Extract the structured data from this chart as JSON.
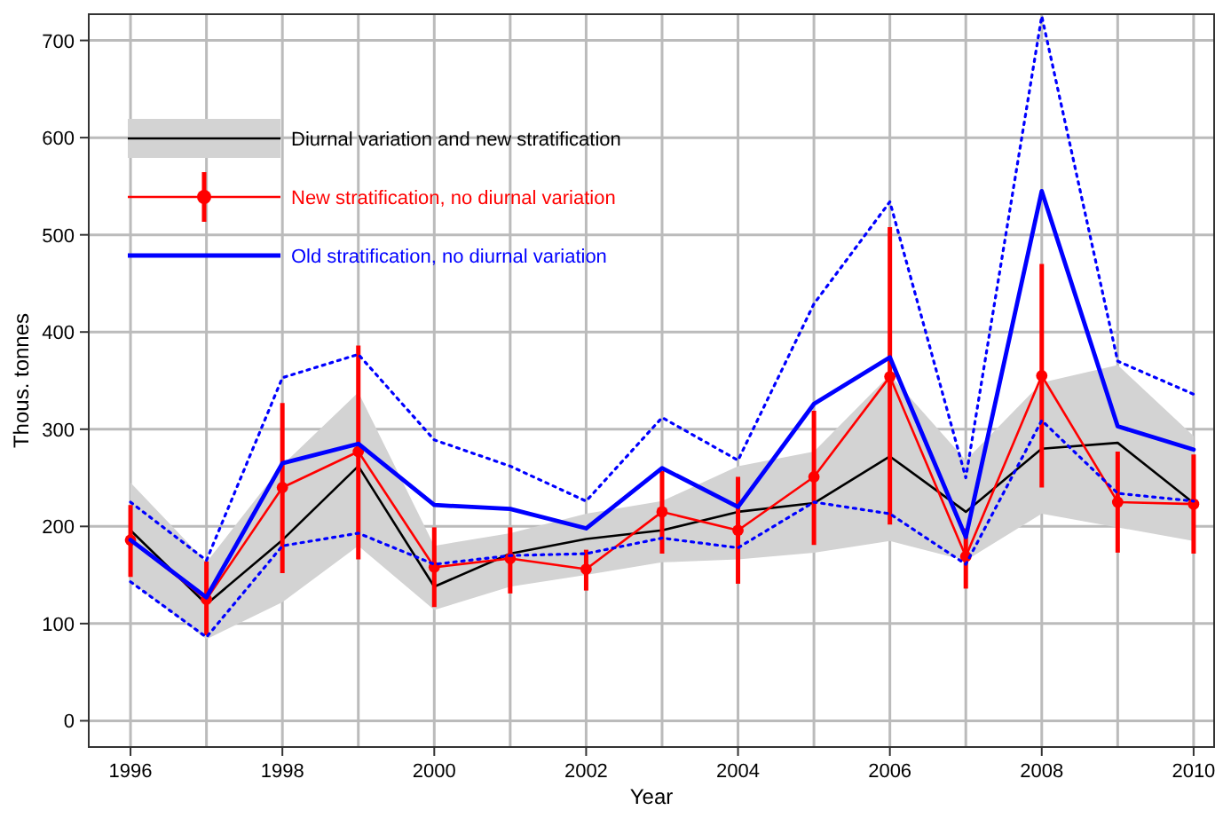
{
  "chart_data": {
    "type": "line",
    "xlabel": "Year",
    "ylabel": "Thous. tonnes",
    "xlim": [
      1995.45,
      2010.27
    ],
    "ylim": [
      -27,
      727
    ],
    "xticks": [
      1996,
      1998,
      2000,
      2002,
      2004,
      2006,
      2008,
      2010
    ],
    "yticks": [
      0,
      100,
      200,
      300,
      400,
      500,
      600,
      700
    ],
    "grid": true,
    "legend": "top left",
    "x": [
      1996,
      1997,
      1998,
      1999,
      2000,
      2001,
      2002,
      2003,
      2004,
      2005,
      2006,
      2007,
      2008,
      2009,
      2010
    ],
    "series": [
      {
        "name": "Diurnal variation and new stratification",
        "color": "#000000",
        "values": [
          196,
          120,
          186,
          262,
          138,
          172,
          187,
          196,
          215,
          224,
          272,
          215,
          280,
          286,
          224
        ],
        "lower": [
          143,
          84,
          122,
          180,
          114,
          138,
          150,
          163,
          166,
          173,
          185,
          165,
          213,
          199,
          185
        ],
        "upper": [
          245,
          163,
          263,
          338,
          180,
          193,
          213,
          226,
          262,
          277,
          356,
          268,
          348,
          366,
          293
        ]
      },
      {
        "name": "New stratification, no diurnal variation",
        "color": "#ff0000",
        "marker": "circle",
        "values": [
          186,
          125,
          240,
          277,
          158,
          167,
          156,
          215,
          196,
          251,
          354,
          169,
          355,
          225,
          223
        ],
        "errors": [
          [
            148,
            222
          ],
          [
            88,
            164
          ],
          [
            152,
            327
          ],
          [
            166,
            386
          ],
          [
            117,
            199
          ],
          [
            131,
            199
          ],
          [
            134,
            176
          ],
          [
            172,
            257
          ],
          [
            141,
            251
          ],
          [
            181,
            319
          ],
          [
            202,
            508
          ],
          [
            136,
            198
          ],
          [
            240,
            470
          ],
          [
            173,
            277
          ],
          [
            172,
            274
          ]
        ]
      },
      {
        "name": "Old stratification, no diurnal variation",
        "color": "#0000ff",
        "values": [
          186,
          127,
          265,
          285,
          222,
          218,
          198,
          260,
          220,
          326,
          374,
          189,
          545,
          303,
          279
        ]
      },
      {
        "color": "#0000ff",
        "line_style": "dotted",
        "values": [
          225,
          165,
          353,
          377,
          289,
          262,
          226,
          312,
          268,
          429,
          534,
          250,
          725,
          370,
          336
        ]
      },
      {
        "color": "#0000ff",
        "line_style": "dotted",
        "values": [
          143,
          86,
          180,
          193,
          161,
          170,
          172,
          188,
          178,
          225,
          213,
          161,
          309,
          234,
          226
        ]
      }
    ]
  }
}
